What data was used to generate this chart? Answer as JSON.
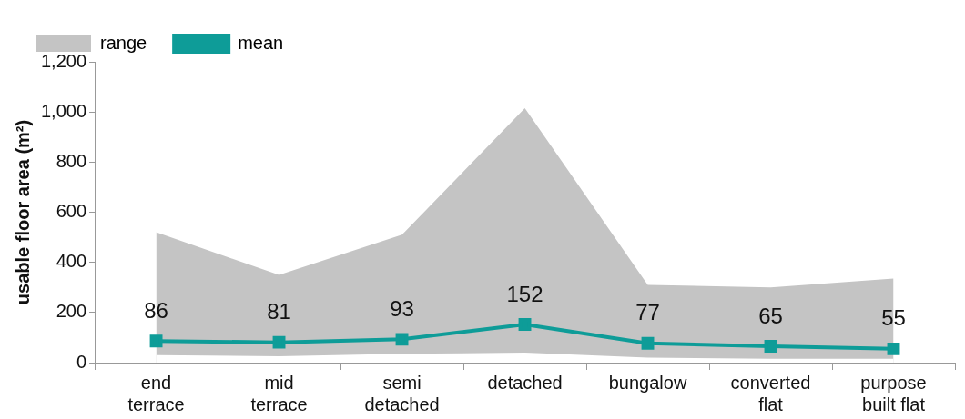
{
  "chart_data": {
    "type": "line",
    "ylabel": "usable floor area (m²)",
    "categories": [
      "end terrace",
      "mid terrace",
      "semi detached",
      "detached",
      "bungalow",
      "converted flat",
      "purpose built flat"
    ],
    "series": [
      {
        "name": "range",
        "type": "area",
        "color": "#c4c4c4",
        "values": [
          520,
          350,
          510,
          1015,
          310,
          300,
          335
        ]
      },
      {
        "type": "area",
        "color": "#ffffff",
        "values": [
          30,
          25,
          35,
          40,
          20,
          15,
          15
        ]
      },
      {
        "name": "mean",
        "type": "line",
        "color": "#0e9c98",
        "values": [
          86,
          81,
          93,
          152,
          77,
          65,
          55
        ],
        "value_labels": [
          "86",
          "81",
          "93",
          "152",
          "77",
          "65",
          "55"
        ],
        "marker": "square"
      }
    ],
    "ylim": [
      0,
      1200
    ],
    "yticks": [
      0,
      200,
      400,
      600,
      800,
      {
        "value": 1000,
        "label": "1,000"
      },
      {
        "value": 1200,
        "label": "1,200"
      }
    ],
    "grid": false,
    "legend": "top left"
  }
}
